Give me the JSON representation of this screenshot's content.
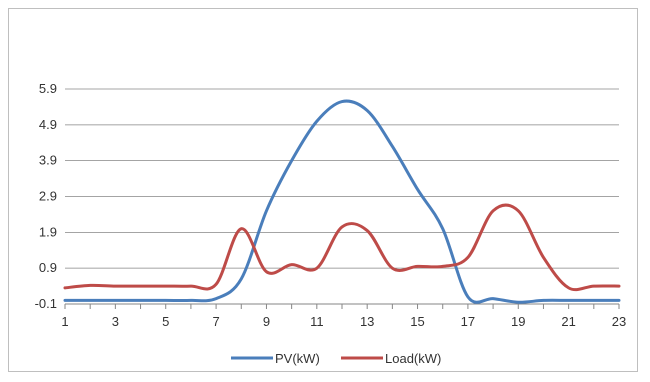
{
  "chart_data": {
    "type": "line",
    "x": [
      1,
      2,
      3,
      4,
      5,
      6,
      7,
      8,
      9,
      10,
      11,
      12,
      13,
      14,
      15,
      16,
      17,
      18,
      19,
      20,
      21,
      22,
      23
    ],
    "xticks": [
      1,
      3,
      5,
      7,
      9,
      11,
      13,
      15,
      17,
      19,
      21,
      23
    ],
    "yticks": [
      -0.1,
      0.9,
      1.9,
      2.9,
      3.9,
      4.9,
      5.9
    ],
    "ylim": [
      -0.1,
      5.9
    ],
    "xlim": [
      1,
      23
    ],
    "grid": true,
    "legend_position": "bottom",
    "series": [
      {
        "name": "PV(kW)",
        "color": "#4a7ebb",
        "values": [
          0,
          0,
          0,
          0,
          0,
          0,
          0.05,
          0.6,
          2.5,
          3.9,
          5.0,
          5.55,
          5.3,
          4.3,
          3.1,
          2.0,
          0.1,
          0.05,
          -0.05,
          0,
          0,
          0,
          0
        ]
      },
      {
        "name": "Load(kW)",
        "color": "#be4b48",
        "values": [
          0.35,
          0.42,
          0.4,
          0.4,
          0.4,
          0.4,
          0.45,
          2.0,
          0.8,
          1.0,
          0.9,
          2.05,
          1.95,
          0.9,
          0.95,
          0.95,
          1.2,
          2.5,
          2.5,
          1.2,
          0.35,
          0.4,
          0.4
        ]
      }
    ]
  }
}
